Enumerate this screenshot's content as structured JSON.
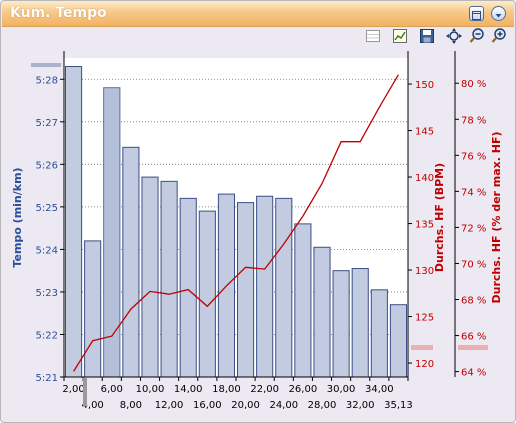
{
  "window": {
    "title": "Kum. Tempo"
  },
  "toolbar": {
    "icons": [
      "grid-icon",
      "chart-settings-icon",
      "save-icon",
      "fit-icon",
      "zoom-out-icon",
      "zoom-in-icon"
    ]
  },
  "colors": {
    "title_text": "#ffffff",
    "bar_fill": "#c2cbe0",
    "bar_stroke": "#3a4f86",
    "line": "#c00000",
    "left_axis_text": "#2b4f9a",
    "right_axis_text": "#c00000"
  },
  "chart_data": {
    "type": "bar",
    "ylabel": "Tempo (min/km)",
    "y2label": "Durchs. HF (BPM)",
    "y3label": "Durchs. HF (% der max. HF)",
    "x_tick_labels_upper": [
      "2,00",
      "6,00",
      "10,00",
      "14,00",
      "18,00",
      "22,00",
      "26,00",
      "30,00",
      "34,00"
    ],
    "x_tick_labels_lower": [
      "4,00",
      "8,00",
      "12,00",
      "16,00",
      "20,00",
      "24,00",
      "28,00",
      "32,00",
      "35,13"
    ],
    "y_tick_labels": [
      "5:21",
      "5:22",
      "5:23",
      "5:24",
      "5:25",
      "5:26",
      "5:27",
      "5:28"
    ],
    "y2_tick_labels": [
      "120",
      "125",
      "130",
      "135",
      "140",
      "145",
      "150"
    ],
    "y3_tick_labels": [
      "64 %",
      "66 %",
      "68 %",
      "70 %",
      "72 %",
      "74 %",
      "76 %",
      "78 %",
      "80 %"
    ],
    "ylim_seconds": [
      321,
      328.5
    ],
    "y2lim": [
      118.5,
      152.8
    ],
    "y3lim": [
      63.7,
      81.4
    ],
    "x": [
      2,
      4,
      6,
      8,
      10,
      12,
      14,
      16,
      18,
      20,
      22,
      24,
      26,
      28,
      30,
      32,
      34,
      35.13
    ],
    "series": [
      {
        "name": "Tempo (min/km)",
        "axis": "left",
        "kind": "bar",
        "values_seconds": [
          328.3,
          324.2,
          327.8,
          326.4,
          325.7,
          325.6,
          325.2,
          324.9,
          325.3,
          325.1,
          325.25,
          325.2,
          324.6,
          324.05,
          323.5,
          323.55,
          323.05,
          322.7
        ]
      },
      {
        "name": "Durchs. HF (BPM)",
        "axis": "right",
        "kind": "line",
        "values": [
          119.1,
          122.4,
          122.9,
          125.8,
          127.7,
          127.4,
          127.9,
          126.1,
          128.3,
          130.3,
          130.1,
          132.8,
          135.8,
          139.3,
          143.8,
          143.8,
          147.5,
          151.0
        ]
      }
    ]
  }
}
